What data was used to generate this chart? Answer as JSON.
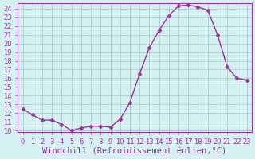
{
  "hours": [
    0,
    1,
    2,
    3,
    4,
    5,
    6,
    7,
    8,
    9,
    10,
    11,
    12,
    13,
    14,
    15,
    16,
    17,
    18,
    19,
    20,
    21,
    22,
    23
  ],
  "windchill": [
    12.5,
    11.8,
    11.2,
    11.2,
    10.7,
    10.0,
    10.3,
    10.5,
    10.5,
    10.4,
    11.3,
    13.2,
    16.5,
    19.5,
    21.5,
    23.2,
    24.3,
    24.4,
    24.2,
    23.8,
    21.0,
    17.3,
    16.0,
    15.8
  ],
  "line_color": "#9b30a0",
  "bg_color": "#d4f0f0",
  "grid_color": "#a0c8c8",
  "xlabel": "Windchill (Refroidissement éolien,°C)",
  "ylim": [
    9.8,
    24.6
  ],
  "yticks": [
    10,
    11,
    12,
    13,
    14,
    15,
    16,
    17,
    18,
    19,
    20,
    21,
    22,
    23,
    24
  ],
  "xticks": [
    0,
    1,
    2,
    3,
    4,
    5,
    6,
    7,
    8,
    9,
    10,
    11,
    12,
    13,
    14,
    15,
    16,
    17,
    18,
    19,
    20,
    21,
    22,
    23
  ],
  "xlabel_fontsize": 7.5,
  "tick_fontsize": 6.0,
  "marker": "D",
  "marker_size": 2.5,
  "linewidth": 1.0
}
